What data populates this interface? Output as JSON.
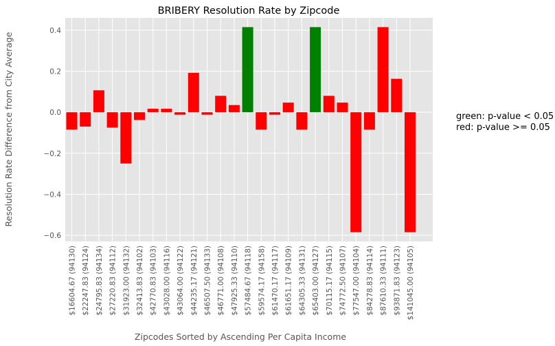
{
  "chart_data": {
    "type": "bar",
    "title": "BRIBERY Resolution Rate by Zipcode",
    "xlabel": "Zipcodes Sorted by Ascending Per Capita Income",
    "ylabel": "Resolution Rate Difference from City Average",
    "ylim": [
      -0.63,
      0.46
    ],
    "yticks": [
      "−0.6",
      "−0.4",
      "−0.2",
      "0.0",
      "0.2",
      "0.4"
    ],
    "ytick_values": [
      -0.6,
      -0.4,
      -0.2,
      0.0,
      0.2,
      0.4
    ],
    "grid": true,
    "categories": [
      "$16604.67 (94130)",
      "$22247.83 (94124)",
      "$24795.83 (94134)",
      "$27220.83 (94112)",
      "$31923.00 (94132)",
      "$32413.83 (94102)",
      "$42770.83 (94103)",
      "$43028.00 (94116)",
      "$43064.00 (94122)",
      "$44235.17 (94121)",
      "$46507.50 (94133)",
      "$46771.00 (94108)",
      "$47925.33 (94110)",
      "$57484.67 (94118)",
      "$59574.17 (94158)",
      "$61470.17 (94117)",
      "$61651.17 (94109)",
      "$64305.33 (94131)",
      "$65403.00 (94127)",
      "$70115.17 (94115)",
      "$74772.50 (94107)",
      "$77547.00 (94104)",
      "$84278.83 (94114)",
      "$87610.33 (94111)",
      "$93871.83 (94123)",
      "$141045.00 (94105)"
    ],
    "values": [
      -0.085,
      -0.07,
      0.107,
      -0.075,
      -0.25,
      -0.038,
      0.017,
      0.017,
      -0.012,
      0.192,
      -0.012,
      0.08,
      0.035,
      0.415,
      -0.085,
      -0.012,
      0.047,
      -0.085,
      0.415,
      0.08,
      0.047,
      -0.585,
      -0.085,
      0.415,
      0.163,
      -0.585
    ],
    "bar_colors": [
      "red",
      "red",
      "red",
      "red",
      "red",
      "red",
      "red",
      "red",
      "red",
      "red",
      "red",
      "red",
      "red",
      "green",
      "red",
      "red",
      "red",
      "red",
      "green",
      "red",
      "red",
      "red",
      "red",
      "red",
      "red",
      "red"
    ],
    "legend_note": [
      "green: p-value < 0.05",
      "red: p-value >= 0.05"
    ],
    "colors": {
      "green": "#008000",
      "red": "#ff0000",
      "plot_bg": "#e5e5e5",
      "grid": "#ffffff"
    }
  }
}
